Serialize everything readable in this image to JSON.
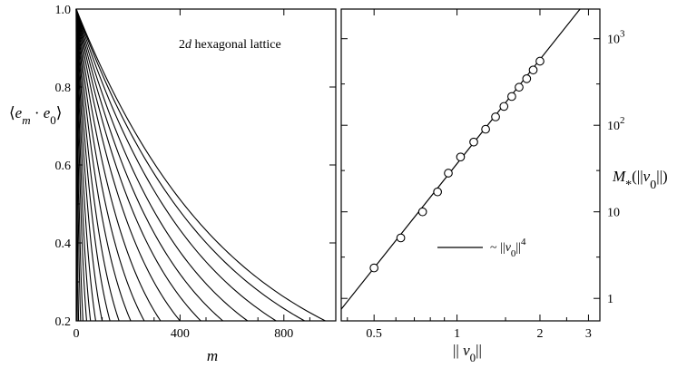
{
  "chart_data": [
    {
      "type": "line",
      "annotation": "2d hexagonal lattice",
      "xlabel": "m",
      "ylabel": "⟨e_m · e_0⟩",
      "xlim": [
        0,
        1000
      ],
      "ylim": [
        0.2,
        1.0
      ],
      "x_ticks": [
        {
          "value": 0,
          "label": "0"
        },
        {
          "value": 400,
          "label": "400"
        },
        {
          "value": 800,
          "label": "800"
        }
      ],
      "y_ticks": [
        {
          "value": 0.2,
          "label": "0.2"
        },
        {
          "value": 0.4,
          "label": "0.4"
        },
        {
          "value": 0.6,
          "label": "0.6"
        },
        {
          "value": 0.8,
          "label": "0.8"
        },
        {
          "value": 1.0,
          "label": "1.0"
        }
      ],
      "curve_shape": "exponential decay from 1.0",
      "curves_reach_0_2_at_m": [
        4,
        9,
        17,
        26,
        40,
        55,
        75,
        100,
        130,
        165,
        210,
        262,
        325,
        400,
        480,
        565,
        660,
        770,
        880,
        960
      ]
    },
    {
      "type": "scatter",
      "xlabel": "||v_0||",
      "ylabel": "M_*(||v_0||)",
      "xscale": "log",
      "yscale": "log",
      "xlim": [
        0.38,
        3.3
      ],
      "ylim": [
        0.55,
        2200
      ],
      "x_ticks": [
        {
          "value": 0.5,
          "label": "0.5"
        },
        {
          "value": 1,
          "label": "1"
        },
        {
          "value": 2,
          "label": "2"
        },
        {
          "value": 3,
          "label": "3"
        }
      ],
      "y_ticks": [
        {
          "value": 1,
          "label": "1"
        },
        {
          "value": 10,
          "label": "10"
        },
        {
          "value": 100,
          "label": "10",
          "sup": "2"
        },
        {
          "value": 1000,
          "label": "10",
          "sup": "3"
        }
      ],
      "points": [
        {
          "x": 0.5,
          "y": 2.25
        },
        {
          "x": 0.625,
          "y": 5.0
        },
        {
          "x": 0.75,
          "y": 10.0
        },
        {
          "x": 0.85,
          "y": 17.0
        },
        {
          "x": 0.93,
          "y": 28.0
        },
        {
          "x": 1.03,
          "y": 43.0
        },
        {
          "x": 1.15,
          "y": 64.0
        },
        {
          "x": 1.27,
          "y": 90.0
        },
        {
          "x": 1.38,
          "y": 125.0
        },
        {
          "x": 1.48,
          "y": 165.0
        },
        {
          "x": 1.58,
          "y": 215.0
        },
        {
          "x": 1.68,
          "y": 275.0
        },
        {
          "x": 1.79,
          "y": 345.0
        },
        {
          "x": 1.89,
          "y": 435.0
        },
        {
          "x": 2.0,
          "y": 550.0
        }
      ],
      "fit": {
        "coefficient": 36.0,
        "exponent": 4
      },
      "legend": {
        "label_prefix": "~ ||v_0||",
        "label_power": "4",
        "placement": "center-right"
      }
    }
  ]
}
